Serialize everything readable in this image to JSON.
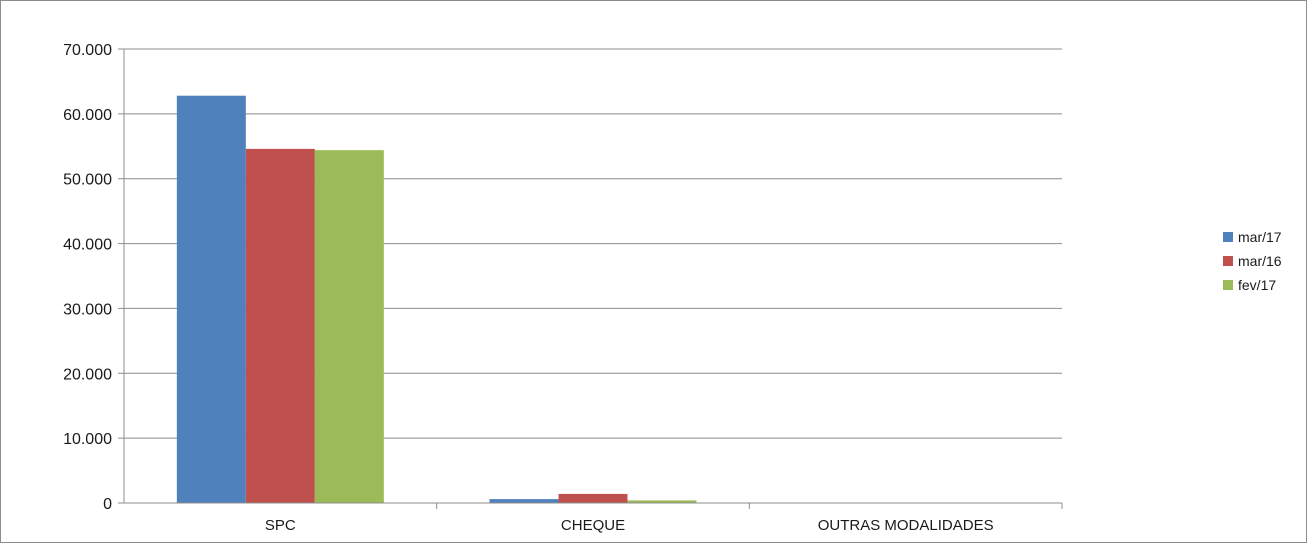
{
  "chart_data": {
    "type": "bar",
    "title": "",
    "xlabel": "",
    "ylabel": "",
    "categories": [
      "SPC",
      "CHEQUE",
      "OUTRAS MODALIDADES"
    ],
    "series": [
      {
        "name": "mar/17",
        "color": "#4f81bd",
        "values": [
          62800,
          600,
          0
        ]
      },
      {
        "name": "mar/16",
        "color": "#c0504d",
        "values": [
          54600,
          1400,
          0
        ]
      },
      {
        "name": "fev/17",
        "color": "#9bbb59",
        "values": [
          54400,
          400,
          0
        ]
      }
    ],
    "ylim": [
      0,
      70000
    ],
    "yticks": [
      0,
      10000,
      20000,
      30000,
      40000,
      50000,
      60000,
      70000
    ],
    "ytick_labels": [
      "0",
      "10.000",
      "20.000",
      "30.000",
      "40.000",
      "50.000",
      "60.000",
      "70.000"
    ],
    "grid": true,
    "legend_position": "right"
  }
}
